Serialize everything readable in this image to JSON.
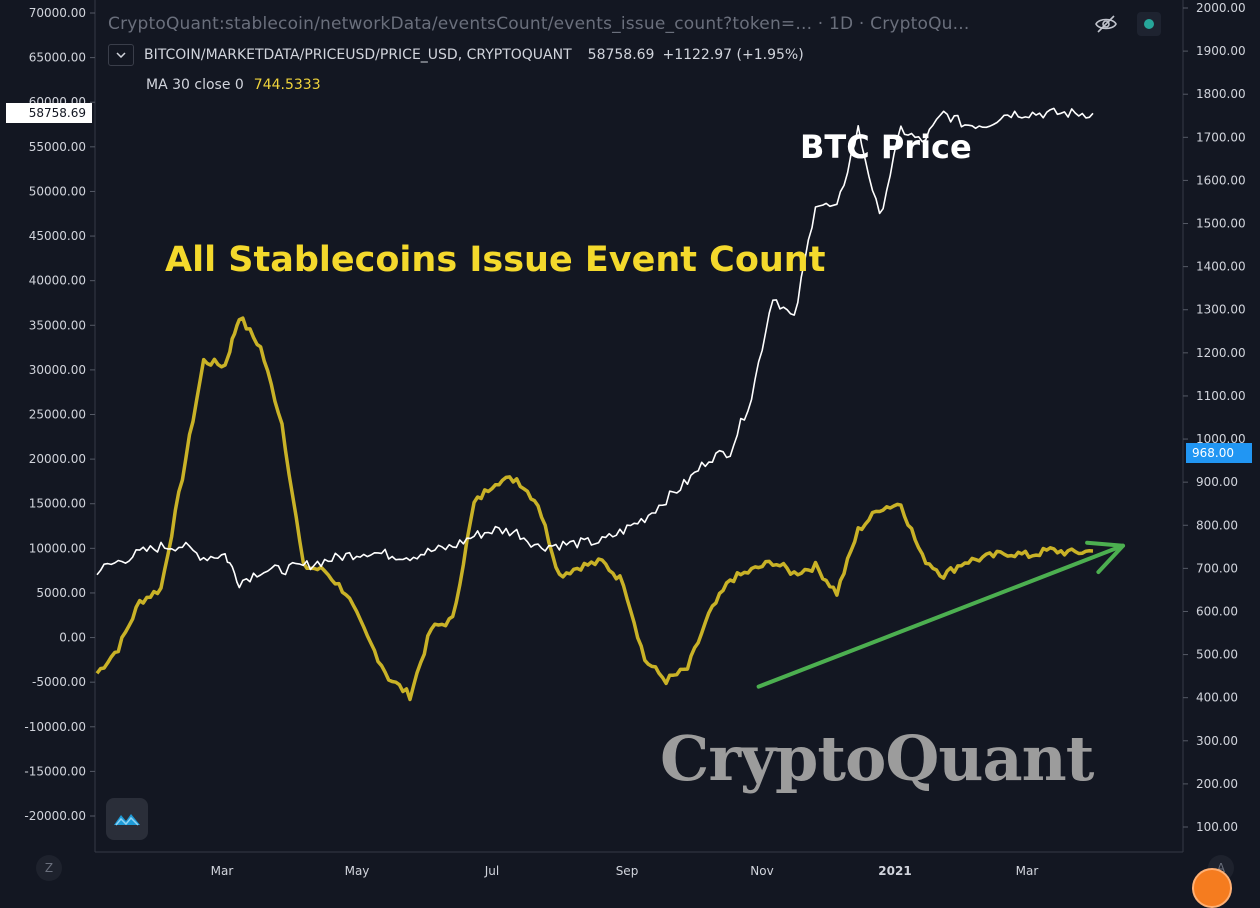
{
  "legend": {
    "source_title": "CryptoQuant:stablecoin/networkData/eventsCount/events_issue_count?token=...",
    "interval_suffix": "· 1D · CryptoQu...",
    "collapse_icon": "chevron-down-icon",
    "symbol": "BITCOIN/MARKETDATA/PRICEUSD/PRICE_USD, CRYPTOQUANT",
    "price": "58758.69",
    "change": "+1122.97 (+1.95%)",
    "ma_label": "MA 30 close 0",
    "ma_value": "744.5333"
  },
  "badges": {
    "left_price": "58758.69",
    "right_value": "968.00"
  },
  "buttons": {
    "z_label": "Z",
    "a_label": "A",
    "eye_icon": "eye-off-icon"
  },
  "watermark": "CryptoQuant",
  "chart_data": {
    "type": "line",
    "annotations": {
      "btc_label": "BTC Price",
      "stable_label": "All Stablecoins Issue Event Count"
    },
    "colors": {
      "background": "#131722",
      "btc": "#ffffff",
      "stable": "#c9b227",
      "trend_arrow": "#4caf50",
      "grid": "#1f2330",
      "axis_text": "#d1d4dc"
    },
    "x_ticks": [
      "Mar",
      "May",
      "Jul",
      "Sep",
      "Nov",
      "2021",
      "Mar"
    ],
    "left_axis": {
      "ticks": [
        "70000.00",
        "65000.00",
        "60000.00",
        "55000.00",
        "50000.00",
        "45000.00",
        "40000.00",
        "35000.00",
        "30000.00",
        "25000.00",
        "20000.00",
        "15000.00",
        "10000.00",
        "5000.00",
        "0.00",
        "-5000.00",
        "-10000.00",
        "-15000.00",
        "-20000.00"
      ],
      "ylim": [
        -20000,
        70000
      ]
    },
    "right_axis": {
      "ticks": [
        "2000.00",
        "1900.00",
        "1800.00",
        "1700.00",
        "1600.00",
        "1500.00",
        "1400.00",
        "1300.00",
        "1200.00",
        "1100.00",
        "1000.00",
        "900.00",
        "800.00",
        "700.00",
        "600.00",
        "500.00",
        "400.00",
        "300.00",
        "200.00",
        "100.00"
      ],
      "ylim": [
        100,
        2000
      ]
    },
    "xlim": [
      0,
      14.5
    ],
    "grid": false,
    "series": [
      {
        "axis": "left",
        "x": [
          0,
          0.3,
          0.6,
          0.9,
          1.2,
          1.5,
          1.8,
          2.0,
          2.3,
          2.6,
          2.9,
          3.2,
          3.5,
          3.8,
          4.1,
          4.4,
          4.7,
          5.0,
          5.3,
          5.6,
          5.9,
          6.2,
          6.5,
          6.8,
          7.1,
          7.4,
          7.7,
          8.0,
          8.3,
          8.6,
          8.9,
          9.2,
          9.5,
          9.8,
          10.1,
          10.4,
          10.7,
          11.0,
          11.3,
          11.6,
          11.9,
          12.2,
          12.5,
          12.8,
          13.1,
          13.4,
          13.7,
          14.0
        ],
        "values": [
          7500,
          8500,
          9500,
          10200,
          10300,
          9000,
          9300,
          6200,
          7500,
          7600,
          8000,
          8600,
          9200,
          9600,
          9300,
          9100,
          9700,
          10200,
          11400,
          12100,
          11800,
          10200,
          10400,
          10600,
          10800,
          12000,
          13400,
          15500,
          17500,
          20100,
          20900,
          27000,
          38300,
          35600,
          48700,
          48000,
          57000,
          47000,
          57000,
          55500,
          58758.69,
          57500,
          57500,
          58758.69,
          58758.69,
          58758.69,
          58758.69,
          58758.69
        ]
      },
      {
        "axis": "left",
        "x": [
          0,
          0.3,
          0.6,
          0.9,
          1.2,
          1.5,
          1.8,
          2.0,
          2.3,
          2.6,
          2.9,
          3.2,
          3.5,
          3.8,
          4.1,
          4.4,
          4.7,
          5.0,
          5.3,
          5.6,
          5.9,
          6.2,
          6.5,
          6.8,
          7.1,
          7.4,
          7.7,
          8.0,
          8.3,
          8.6,
          8.9,
          9.2,
          9.5,
          9.8,
          10.1,
          10.4,
          10.7,
          11.0,
          11.3,
          11.6,
          11.9,
          12.2,
          12.5,
          12.8,
          13.1,
          13.4,
          13.7,
          14.0
        ],
        "values": [
          -4000,
          -1200,
          4000,
          5500,
          18000,
          31000,
          30500,
          36000,
          32500,
          24000,
          8000,
          7500,
          5000,
          0,
          -4500,
          -6500,
          1000,
          2000,
          15000,
          17500,
          17800,
          15000,
          7000,
          8000,
          8500,
          6200,
          -2500,
          -4800,
          -3500,
          2500,
          6500,
          7500,
          8500,
          7200,
          8000,
          5000,
          12000,
          14500,
          15000,
          9000,
          7000,
          8500,
          9000,
          9500,
          9200,
          9800,
          9500,
          9700
        ]
      }
    ],
    "trend_arrow": {
      "from": [
        9.3,
        -5500
      ],
      "to": [
        14.0,
        10300
      ]
    }
  }
}
